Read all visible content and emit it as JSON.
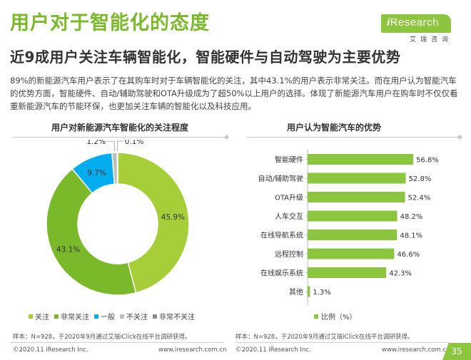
{
  "header": {
    "title": "用户对于智能化的态度",
    "subtitle": "近9成用户关注车辆智能化，智能硬件与自动驾驶为主要优势",
    "description": "89%的新能源汽车用户表示了在其购车时对于车辆智能化的关注，其中43.1%的用户表示非常关注。而在用户认为智能汽车的优势方面，智能硬件、自动/辅助驾驶和OTA升级成为了超50%以上用户的选择。体现了新能源汽车用户在购车时不仅仅看重新能源汽车的节能环保，也更加关注车辆的智能化以及科技应用。"
  },
  "logo": {
    "brand_prefix": "i",
    "brand_name": "Research",
    "sub": "艾瑞咨询"
  },
  "colors": {
    "accent": "#7ab929",
    "bar": "#8cc63f",
    "pie": [
      "#a6ce39",
      "#7ab929",
      "#00aeef",
      "#bfbfbf",
      "#8c8c8c"
    ]
  },
  "chart_data": [
    {
      "type": "pie",
      "title": "用户对新能源汽车智能化的关注程度",
      "categories": [
        "关注",
        "非常关注",
        "一般",
        "不关注",
        "非常不关注"
      ],
      "values": [
        45.9,
        43.1,
        9.7,
        1.2,
        0.1
      ],
      "labels": [
        "45.9%",
        "43.1%",
        "9.7%",
        "1.2%",
        "0.1%"
      ],
      "legend": "bottom"
    },
    {
      "type": "bar",
      "orientation": "horizontal",
      "title": "用户认为智能汽车的优势",
      "categories": [
        "智能硬件",
        "自动/辅助驾驶",
        "OTA升级",
        "人车交互",
        "在线导航系统",
        "远程控制",
        "在线娱乐系统",
        "其他"
      ],
      "values": [
        56.8,
        52.8,
        52.4,
        48.2,
        48.1,
        46.6,
        42.3,
        1.3
      ],
      "labels": [
        "56.8%",
        "52.8%",
        "52.4%",
        "48.2%",
        "48.1%",
        "46.6%",
        "42.3%",
        "1.3%"
      ],
      "series": [
        {
          "name": "比例（%）",
          "values": [
            56.8,
            52.8,
            52.4,
            48.2,
            48.1,
            46.6,
            42.3,
            1.3
          ]
        }
      ],
      "legend": "bottom"
    }
  ],
  "notes": {
    "left": "样本：N=928，于2020年9月通过艾瑞iClick在线平台调研获得。",
    "right": "样本：N=928，于2020年9月通过艾瑞iClick在线平台调研获得。"
  },
  "footer": {
    "copyright_left": "©2020.11 iResearch Inc.",
    "url_left": "www.iresearch.com.cn",
    "copyright_right": "©2020.11 iResearch Inc.",
    "url_right": "www.iresearch.com.cn",
    "page": "35"
  }
}
